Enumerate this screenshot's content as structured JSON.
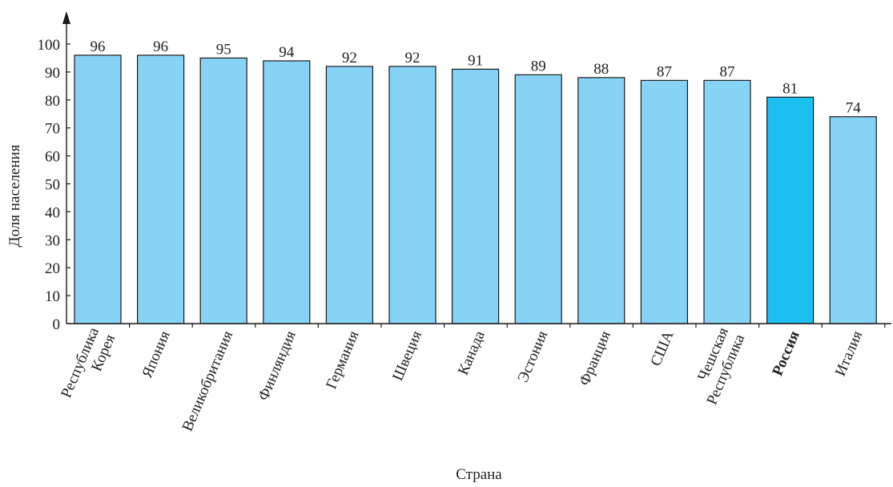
{
  "chart_data": {
    "type": "bar",
    "categories": [
      [
        "Республика",
        "Корея"
      ],
      [
        "Япония"
      ],
      [
        "Великобритания"
      ],
      [
        "Финляндия"
      ],
      [
        "Германия"
      ],
      [
        "Швеция"
      ],
      [
        "Канада"
      ],
      [
        "Эстония"
      ],
      [
        "Франция"
      ],
      [
        "США"
      ],
      [
        "Чешская",
        "Республика"
      ],
      [
        "Россия"
      ],
      [
        "Италия"
      ]
    ],
    "values": [
      96,
      96,
      95,
      94,
      92,
      92,
      91,
      89,
      88,
      87,
      87,
      81,
      74
    ],
    "value_labels": [
      "96",
      "96",
      "95",
      "94",
      "92",
      "92",
      "91",
      "89",
      "88",
      "87",
      "87",
      "81",
      "74"
    ],
    "highlighted_category": "Россия",
    "xlabel": "Страна",
    "ylabel": "Доля населения",
    "ylim": [
      0,
      100
    ],
    "yticks": [
      0,
      10,
      20,
      30,
      40,
      50,
      60,
      70,
      80,
      90,
      100
    ],
    "ytick_labels": [
      "0",
      "10",
      "20",
      "30",
      "40",
      "50",
      "60",
      "70",
      "80",
      "90",
      "100"
    ],
    "colors": {
      "bar": "#87d3f5",
      "highlight_bar": "#1bbff0",
      "bar_stroke": "#1a1a1a",
      "axis": "#1a1a1a"
    },
    "grid": false,
    "legend": "none"
  }
}
